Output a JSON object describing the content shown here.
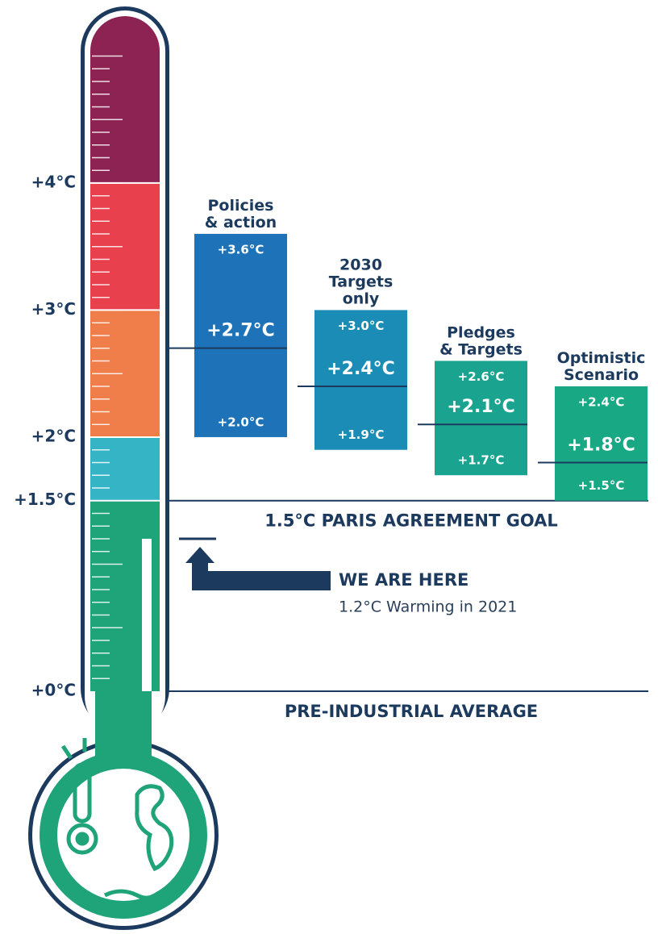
{
  "chart_data": {
    "type": "thermometer-range",
    "ylim": [
      0,
      5.25
    ],
    "yticks": [
      {
        "value": 0,
        "label": "+0°C"
      },
      {
        "value": 1.5,
        "label": "+1.5°C"
      },
      {
        "value": 2,
        "label": "+2°C"
      },
      {
        "value": 3,
        "label": "+3°C"
      },
      {
        "value": 4,
        "label": "+4°C"
      }
    ],
    "band_colors": [
      "#1fa378",
      "#35b4c6",
      "#f07e4a",
      "#e8404d",
      "#8d2352"
    ],
    "series": [
      {
        "name": "Policies\n& action",
        "color": "#1d72b8",
        "values": [
          2.0,
          2.7,
          3.6
        ],
        "value_labels": [
          "+2.0°C",
          "+2.7°C",
          "+3.6°C"
        ]
      },
      {
        "name": "2030\nTargets\nonly",
        "color": "#1a8cb5",
        "values": [
          1.9,
          2.4,
          3.0
        ],
        "value_labels": [
          "+1.9°C",
          "+2.4°C",
          "+3.0°C"
        ]
      },
      {
        "name": "Pledges\n& Targets",
        "color": "#1aa48f",
        "values": [
          1.7,
          2.1,
          2.6
        ],
        "value_labels": [
          "+1.7°C",
          "+2.1°C",
          "+2.6°C"
        ]
      },
      {
        "name": "Optimistic\nScenario",
        "color": "#18a884",
        "values": [
          1.5,
          1.8,
          2.4
        ],
        "value_labels": [
          "+1.5°C",
          "+1.8°C",
          "+2.4°C"
        ]
      }
    ],
    "annotations": [
      {
        "value": 1.5,
        "label": "1.5°C PARIS AGREEMENT GOAL"
      },
      {
        "value": 0,
        "label": "PRE-INDUSTRIAL AVERAGE"
      }
    ],
    "current": {
      "value": 1.2,
      "title": "WE ARE HERE",
      "label": "1.2°C Warming in 2021"
    }
  }
}
